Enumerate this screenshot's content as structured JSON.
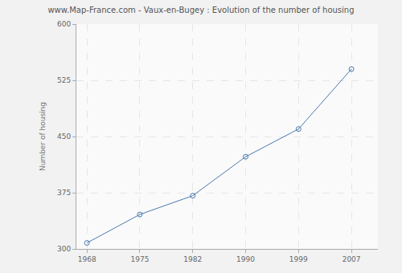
{
  "chart_data": {
    "type": "line",
    "title": "www.Map-France.com - Vaux-en-Bugey : Evolution of the number of housing",
    "y_label": "Number of housing",
    "categories": [
      "1968",
      "1975",
      "1982",
      "1990",
      "1999",
      "2007"
    ],
    "values": [
      308,
      346,
      371,
      423,
      460,
      540
    ],
    "color": "#4a7ab0",
    "marker": "circle-open",
    "line_style": "solid",
    "ylim": [
      300,
      600
    ],
    "yticks": [
      300,
      375,
      450,
      525,
      600
    ],
    "grid": true
  }
}
